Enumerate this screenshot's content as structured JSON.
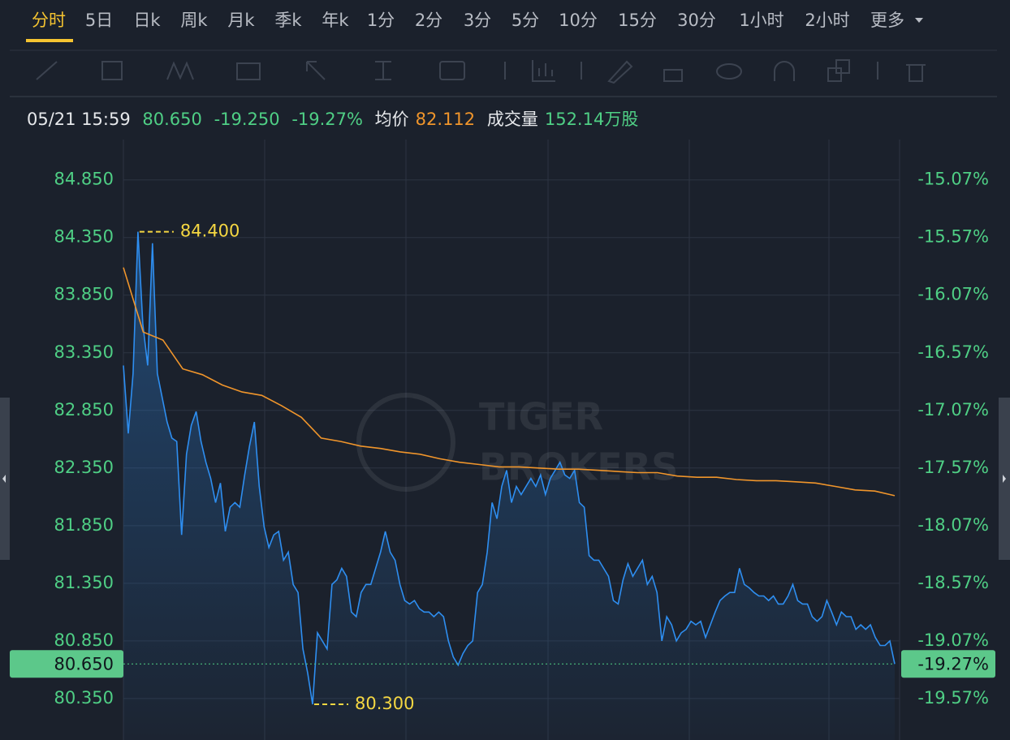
{
  "tabs": [
    "分时",
    "5日",
    "日k",
    "周k",
    "月k",
    "季k",
    "年k",
    "1分",
    "2分",
    "3分",
    "5分",
    "10分",
    "15分",
    "30分",
    "1小时",
    "2小时",
    "更多"
  ],
  "info": {
    "time": "05/21 15:59",
    "price": "80.650",
    "change": "-19.250",
    "change_pct": "-19.27%",
    "avg_label": "均价",
    "avg": "82.112",
    "volume_label": "成交量",
    "volume": "152.14万股"
  },
  "chart_data": {
    "type": "line",
    "watermark": [
      "TIGER",
      "BROKERS"
    ],
    "ylim": [
      79.99,
      85.2
    ],
    "yticks": [
      {
        "value": 84.85,
        "label": "84.850"
      },
      {
        "value": 84.35,
        "label": "84.350"
      },
      {
        "value": 83.85,
        "label": "83.850"
      },
      {
        "value": 83.35,
        "label": "83.350"
      },
      {
        "value": 82.85,
        "label": "82.850"
      },
      {
        "value": 82.35,
        "label": "82.350"
      },
      {
        "value": 81.85,
        "label": "81.850"
      },
      {
        "value": 81.35,
        "label": "81.350"
      },
      {
        "value": 80.85,
        "label": "80.850"
      },
      {
        "value": 80.35,
        "label": "80.350"
      }
    ],
    "y2lim": [
      -19.93,
      -14.72
    ],
    "y2ticks": [
      {
        "value": -15.07,
        "label": "-15.07%"
      },
      {
        "value": -15.57,
        "label": "-15.57%"
      },
      {
        "value": -16.07,
        "label": "-16.07%"
      },
      {
        "value": -16.57,
        "label": "-16.57%"
      },
      {
        "value": -17.07,
        "label": "-17.07%"
      },
      {
        "value": -17.57,
        "label": "-17.57%"
      },
      {
        "value": -18.07,
        "label": "-18.07%"
      },
      {
        "value": -18.57,
        "label": "-18.57%"
      },
      {
        "value": -19.07,
        "label": "-19.07%"
      },
      {
        "value": -19.57,
        "label": "-19.57%"
      }
    ],
    "grid": true,
    "series": [
      {
        "name": "price",
        "color": "#2e8ef0",
        "values": [
          83.24,
          82.65,
          83.17,
          84.4,
          83.6,
          83.24,
          84.3,
          83.17,
          82.96,
          82.75,
          82.61,
          82.58,
          81.77,
          82.47,
          82.72,
          82.84,
          82.58,
          82.4,
          82.26,
          82.05,
          82.22,
          81.8,
          82.01,
          82.05,
          82.01,
          82.29,
          82.54,
          82.75,
          82.19,
          81.84,
          81.66,
          81.77,
          81.8,
          81.55,
          81.62,
          81.34,
          81.27,
          80.78,
          80.57,
          80.3,
          80.92,
          80.85,
          80.78,
          81.34,
          81.38,
          81.48,
          81.41,
          81.1,
          81.06,
          81.27,
          81.34,
          81.34,
          81.48,
          81.62,
          81.8,
          81.62,
          81.55,
          81.34,
          81.2,
          81.17,
          81.2,
          81.13,
          81.1,
          81.1,
          81.06,
          81.1,
          81.06,
          80.85,
          80.71,
          80.64,
          80.74,
          80.81,
          80.85,
          81.27,
          81.34,
          81.62,
          82.05,
          81.91,
          82.19,
          82.33,
          82.05,
          82.19,
          82.12,
          82.19,
          82.26,
          82.19,
          82.29,
          82.12,
          82.26,
          82.33,
          82.4,
          82.29,
          82.26,
          82.33,
          82.05,
          82.01,
          81.59,
          81.55,
          81.55,
          81.48,
          81.41,
          81.2,
          81.17,
          81.38,
          81.52,
          81.41,
          81.48,
          81.55,
          81.34,
          81.41,
          81.27,
          80.85,
          81.06,
          80.99,
          80.85,
          80.92,
          80.95,
          81.02,
          80.99,
          81.02,
          80.88,
          80.99,
          81.1,
          81.2,
          81.24,
          81.27,
          81.27,
          81.48,
          81.34,
          81.31,
          81.27,
          81.24,
          81.24,
          81.2,
          81.24,
          81.17,
          81.17,
          81.24,
          81.34,
          81.2,
          81.17,
          81.17,
          81.06,
          81.02,
          81.06,
          81.2,
          81.1,
          80.99,
          81.1,
          81.06,
          81.06,
          80.95,
          80.99,
          80.95,
          80.99,
          80.88,
          80.81,
          80.81,
          80.85,
          80.65
        ]
      },
      {
        "name": "average",
        "color": "#f0952b",
        "values": [
          84.09,
          83.53,
          83.46,
          83.21,
          83.16,
          83.07,
          83.01,
          82.98,
          82.89,
          82.79,
          82.61,
          82.58,
          82.54,
          82.52,
          82.49,
          82.47,
          82.43,
          82.4,
          82.38,
          82.36,
          82.36,
          82.35,
          82.34,
          82.34,
          82.33,
          82.32,
          82.31,
          82.31,
          82.28,
          82.27,
          82.27,
          82.25,
          82.24,
          82.24,
          82.23,
          82.22,
          82.19,
          82.16,
          82.15,
          82.11
        ]
      }
    ],
    "high": {
      "value": 84.4,
      "label": "84.400"
    },
    "low": {
      "value": 80.3,
      "label": "80.300"
    },
    "last": {
      "value": 80.65,
      "label": "80.650"
    },
    "last_pct": {
      "value": -19.27,
      "label": "-19.27%"
    }
  }
}
